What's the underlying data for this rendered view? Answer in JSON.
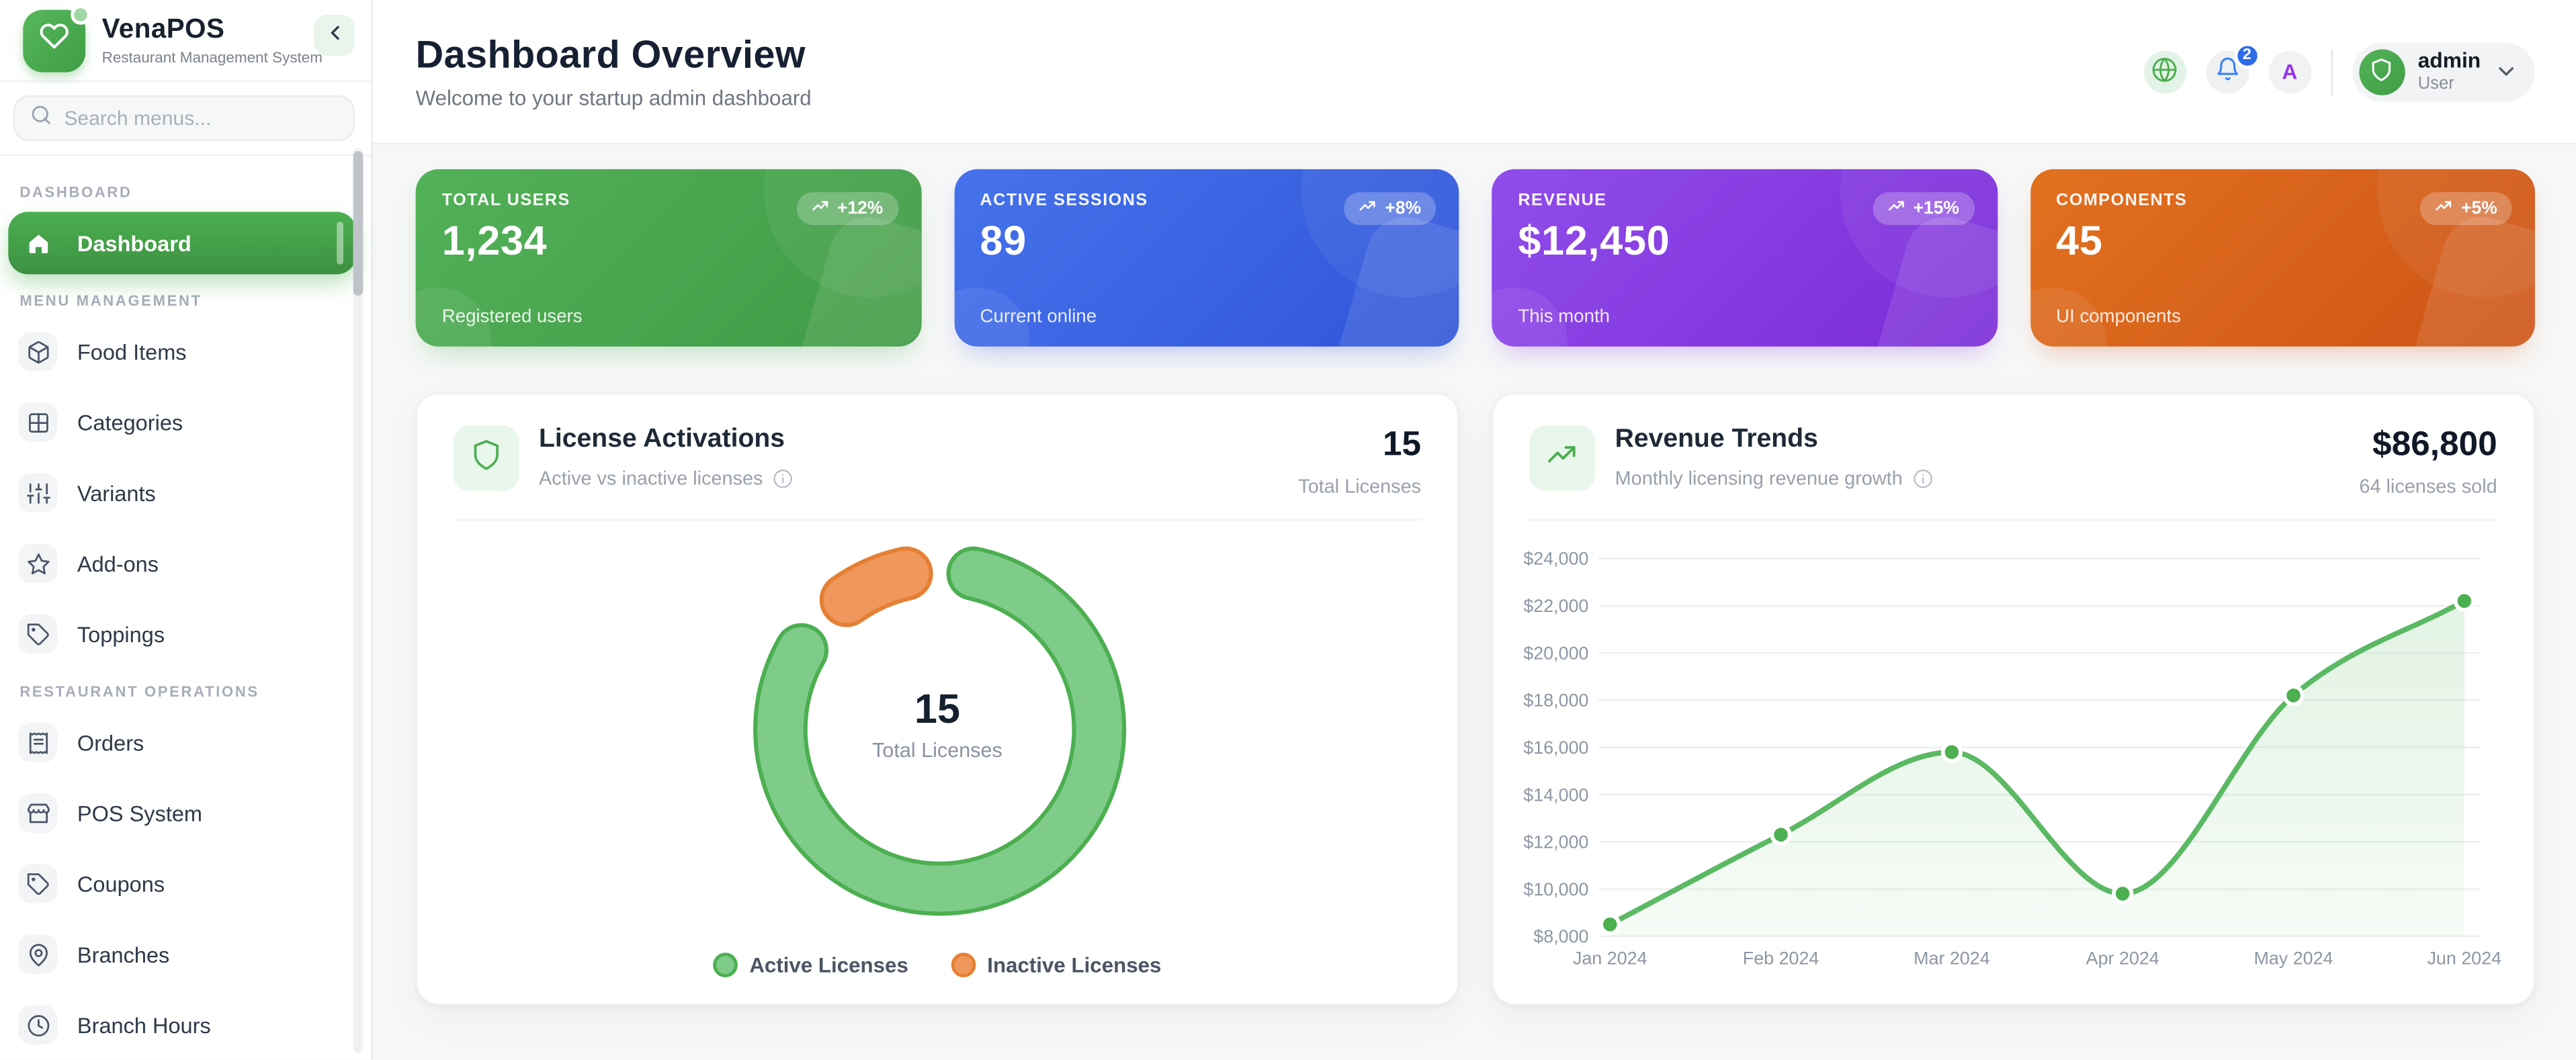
{
  "app": {
    "name": "VenaPOS",
    "tagline": "Restaurant Management System"
  },
  "sidebar": {
    "search_placeholder": "Search menus...",
    "sections": [
      {
        "label": "DASHBOARD",
        "items": [
          {
            "icon": "home",
            "label": "Dashboard",
            "active": true
          }
        ]
      },
      {
        "label": "MENU MANAGEMENT",
        "items": [
          {
            "icon": "package",
            "label": "Food Items"
          },
          {
            "icon": "grid",
            "label": "Categories"
          },
          {
            "icon": "sliders",
            "label": "Variants"
          },
          {
            "icon": "star",
            "label": "Add-ons"
          },
          {
            "icon": "tag",
            "label": "Toppings"
          }
        ]
      },
      {
        "label": "RESTAURANT OPERATIONS",
        "items": [
          {
            "icon": "receipt",
            "label": "Orders"
          },
          {
            "icon": "store",
            "label": "POS System"
          },
          {
            "icon": "tag",
            "label": "Coupons"
          },
          {
            "icon": "pin",
            "label": "Branches"
          },
          {
            "icon": "clock",
            "label": "Branch Hours"
          }
        ]
      }
    ]
  },
  "header": {
    "title": "Dashboard Overview",
    "subtitle": "Welcome to your startup admin dashboard",
    "notification_count": "2",
    "avatar_letter": "A",
    "user": {
      "name": "admin",
      "role": "User"
    }
  },
  "stat_cards": [
    {
      "label": "TOTAL USERS",
      "value": "1,234",
      "caption": "Registered users",
      "badge": "+12%",
      "color_from": "#53b158",
      "color_to": "#3f9a45",
      "shadow": "rgba(76,175,80,.35)"
    },
    {
      "label": "ACTIVE SESSIONS",
      "value": "89",
      "caption": "Current online",
      "badge": "+8%",
      "color_from": "#4672ec",
      "color_to": "#2f55d8",
      "shadow": "rgba(63,90,224,.35)"
    },
    {
      "label": "REVENUE",
      "value": "$12,450",
      "caption": "This month",
      "badge": "+15%",
      "color_from": "#914deb",
      "color_to": "#7a2bd7",
      "shadow": "rgba(139,61,232,.35)"
    },
    {
      "label": "COMPONENTS",
      "value": "45",
      "caption": "UI components",
      "badge": "+5%",
      "color_from": "#e2711f",
      "color_to": "#cd5316",
      "shadow": "rgba(217,96,31,.35)"
    }
  ],
  "license_card": {
    "title": "License Activations",
    "subtitle": "Active vs inactive licenses",
    "total_value": "15",
    "total_label": "Total Licenses",
    "center_value": "15",
    "center_label": "Total Licenses"
  },
  "revenue_card": {
    "title": "Revenue Trends",
    "subtitle": "Monthly licensing revenue growth",
    "total_value": "$86,800",
    "total_label": "64 licenses sold"
  },
  "chart_data": [
    {
      "type": "pie",
      "title": "License Activations",
      "donut": true,
      "center_value": 15,
      "center_label": "Total Licenses",
      "legend_position": "bottom",
      "slices": [
        {
          "label": "Active Licenses",
          "value": 13,
          "fill": "#7ecb8a",
          "stroke": "#4caf50"
        },
        {
          "label": "Inactive Licenses",
          "value": 2,
          "fill": "#f0975d",
          "stroke": "#e57f33"
        }
      ]
    },
    {
      "type": "line",
      "title": "Revenue Trends",
      "x": [
        "Jan 2024",
        "Feb 2024",
        "Mar 2024",
        "Apr 2024",
        "May 2024",
        "Jun 2024"
      ],
      "series": [
        {
          "name": "Monthly licensing revenue",
          "values": [
            8500,
            12300,
            15800,
            9800,
            18200,
            22200
          ]
        }
      ],
      "ylim": [
        8000,
        24000
      ],
      "ytick_step": 2000,
      "ytick_labels": [
        "$8,000",
        "$10,000",
        "$12,000",
        "$14,000",
        "$16,000",
        "$18,000",
        "$20,000",
        "$22,000",
        "$24,000"
      ],
      "grid": true,
      "legend": false,
      "line_color": "#5bb964",
      "point_color": "#4caf50",
      "area_top_color": "rgba(124,201,131,0.22)",
      "area_bottom_color": "rgba(124,201,131,0.07)"
    }
  ]
}
